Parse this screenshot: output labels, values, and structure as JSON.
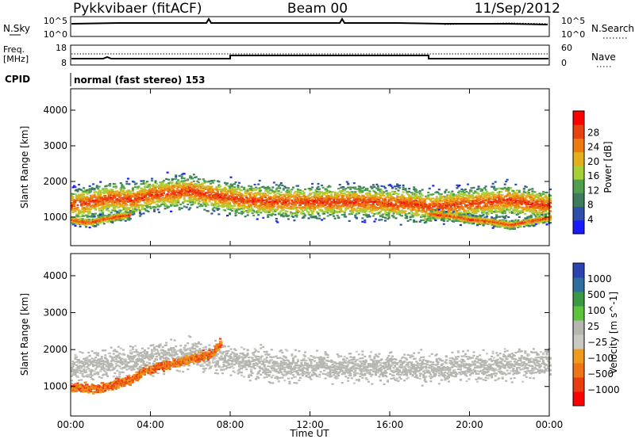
{
  "header": {
    "title": "Pykkvibaer (fitACF)",
    "beam": "Beam 00",
    "date": "11/Sep/2012"
  },
  "strip_nsky": {
    "left_label": "N.Sky",
    "right_label": "N.Search",
    "tick_top_left": "10^5",
    "tick_bottom_left": "10^0",
    "tick_top_right": "10^5",
    "tick_bottom_right": "10^0"
  },
  "strip_freq": {
    "left_label_1": "Freq.",
    "left_label_2": "[MHz]",
    "right_label": "Nave",
    "tick_top_left": "18",
    "tick_bottom_left": "8",
    "tick_top_right": "60",
    "tick_bottom_right": "0"
  },
  "cpid": {
    "label": "CPID",
    "mode_text": "normal (fast stereo) 153"
  },
  "colors": {
    "power": [
      "#1a1aff",
      "#2f4fa8",
      "#3c7c5c",
      "#4f9f4f",
      "#a6cf3a",
      "#e3b01c",
      "#ee7a12",
      "#e7420f",
      "#ff0000"
    ],
    "velocity": [
      "#2b44b2",
      "#2f6f9f",
      "#3a9a44",
      "#5cc43c",
      "#b6b6b0",
      "#c9c9c2",
      "#ee9a1e",
      "#ef7415",
      "#ea3c0e",
      "#ff0000"
    ]
  },
  "chart_data": [
    {
      "type": "heatmap",
      "panel": "power",
      "ylabel": "Slant Range [km]",
      "ylim": [
        200,
        4600
      ],
      "yticks": [
        "1000",
        "2000",
        "3000",
        "4000"
      ],
      "xlabel": "",
      "xlim_hours": [
        0,
        24
      ],
      "xticks": [
        "00:00",
        "04:00",
        "08:00",
        "12:00",
        "16:00",
        "20:00",
        "00:00"
      ],
      "colorbar_label": "Power [dB]",
      "colorbar_ticks": [
        "4",
        "8",
        "12",
        "16",
        "20",
        "24",
        "28"
      ],
      "series": [
        {
          "name": "main echo band",
          "x": [
            0,
            1,
            2,
            3,
            4,
            5,
            6,
            7,
            8,
            9,
            10,
            11,
            12,
            13,
            14,
            15,
            16,
            17,
            18,
            19,
            20,
            21,
            22,
            23,
            24
          ],
          "y": [
            1350,
            1450,
            1550,
            1500,
            1650,
            1700,
            1750,
            1650,
            1550,
            1500,
            1450,
            1450,
            1450,
            1450,
            1450,
            1450,
            1400,
            1400,
            1300,
            1350,
            1400,
            1450,
            1500,
            1400,
            1350
          ]
        },
        {
          "name": "near-range echoes",
          "x": [
            0,
            0.5,
            1,
            1.5,
            2,
            2.5,
            3
          ],
          "y": [
            950,
            880,
            870,
            950,
            1000,
            1050,
            1080
          ]
        },
        {
          "name": "far-range echoes",
          "x": [
            18,
            19,
            20,
            21,
            22,
            23,
            24
          ],
          "y": [
            1100,
            1050,
            950,
            900,
            800,
            900,
            1000
          ]
        }
      ]
    },
    {
      "type": "heatmap",
      "panel": "velocity",
      "ylabel": "Slant Range [km]",
      "ylim": [
        200,
        4600
      ],
      "yticks": [
        "1000",
        "2000",
        "3000",
        "4000"
      ],
      "xlabel": "Time UT",
      "xlim_hours": [
        0,
        24
      ],
      "xticks": [
        "00:00",
        "04:00",
        "08:00",
        "12:00",
        "16:00",
        "20:00",
        "00:00"
      ],
      "colorbar_label": "Velocity [m s^-1]",
      "colorbar_ticks": [
        "1000",
        "500",
        "100",
        "25",
        "−25",
        "−100",
        "−500",
        "−1000"
      ],
      "series": [
        {
          "name": "ground scatter band",
          "x": [
            0,
            2,
            4,
            6,
            8,
            10,
            12,
            14,
            16,
            18,
            20,
            22,
            24
          ],
          "y": [
            1500,
            1650,
            1800,
            1900,
            1700,
            1600,
            1550,
            1550,
            1550,
            1500,
            1550,
            1600,
            1650
          ]
        },
        {
          "name": "negative velocity echoes",
          "x": [
            0,
            1,
            2,
            3,
            3.5,
            4,
            7,
            7.5
          ],
          "y": [
            1000,
            950,
            1050,
            1200,
            1400,
            1500,
            1900,
            2200
          ]
        }
      ]
    }
  ]
}
